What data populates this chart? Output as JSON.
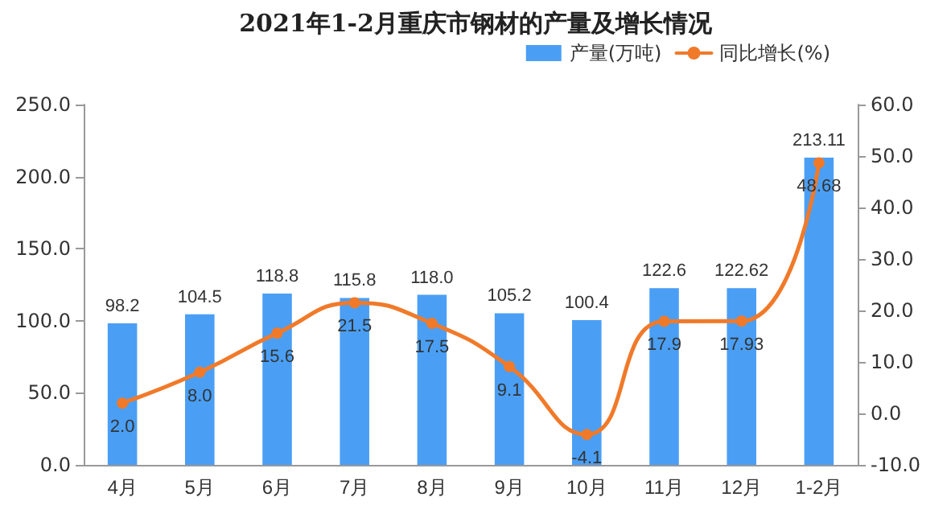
{
  "chart_data": {
    "type": "bar",
    "title": "2021年1-2月重庆市钢材的产量及增长情况",
    "categories": [
      "4月",
      "5月",
      "6月",
      "7月",
      "8月",
      "9月",
      "10月",
      "11月",
      "12月",
      "1-2月"
    ],
    "series": [
      {
        "name": "产量(万吨)",
        "color": "#4a9ff5",
        "values": [
          98.2,
          104.5,
          118.8,
          115.8,
          118.0,
          105.2,
          100.4,
          122.6,
          122.62,
          213.11
        ],
        "value_labels": [
          "98.2",
          "104.5",
          "118.8",
          "115.8",
          "118.0",
          "105.2",
          "100.4",
          "122.6",
          "122.62",
          "213.11"
        ]
      },
      {
        "name": "同比增长(%)",
        "type": "line",
        "axis": "y2",
        "color": "#f07a2a",
        "marker": "circle",
        "line_style": "solid",
        "values": [
          2.0,
          8.0,
          15.6,
          21.5,
          17.5,
          9.1,
          -4.1,
          17.9,
          17.93,
          48.68
        ],
        "value_labels": [
          "2.0",
          "8.0",
          "15.6",
          "21.5",
          "17.5",
          "9.1",
          "-4.1",
          "17.9",
          "17.93",
          "48.68"
        ]
      }
    ],
    "ylim": [
      0,
      250
    ],
    "yticks": [
      {
        "value": 0,
        "label": "0.0"
      },
      {
        "value": 50,
        "label": "50.0"
      },
      {
        "value": 100,
        "label": "100.0"
      },
      {
        "value": 150,
        "label": "150.0"
      },
      {
        "value": 200,
        "label": "200.0"
      },
      {
        "value": 250,
        "label": "250.0"
      }
    ],
    "y2lim": [
      -10,
      60
    ],
    "y2ticks": [
      {
        "value": -10,
        "label": "-10.0"
      },
      {
        "value": 0,
        "label": "0.0"
      },
      {
        "value": 10,
        "label": "10.0"
      },
      {
        "value": 20,
        "label": "20.0"
      },
      {
        "value": 30,
        "label": "30.0"
      },
      {
        "value": 40,
        "label": "40.0"
      },
      {
        "value": 50,
        "label": "50.0"
      },
      {
        "value": 60,
        "label": "60.0"
      }
    ],
    "grid": false,
    "legend": "top right"
  }
}
